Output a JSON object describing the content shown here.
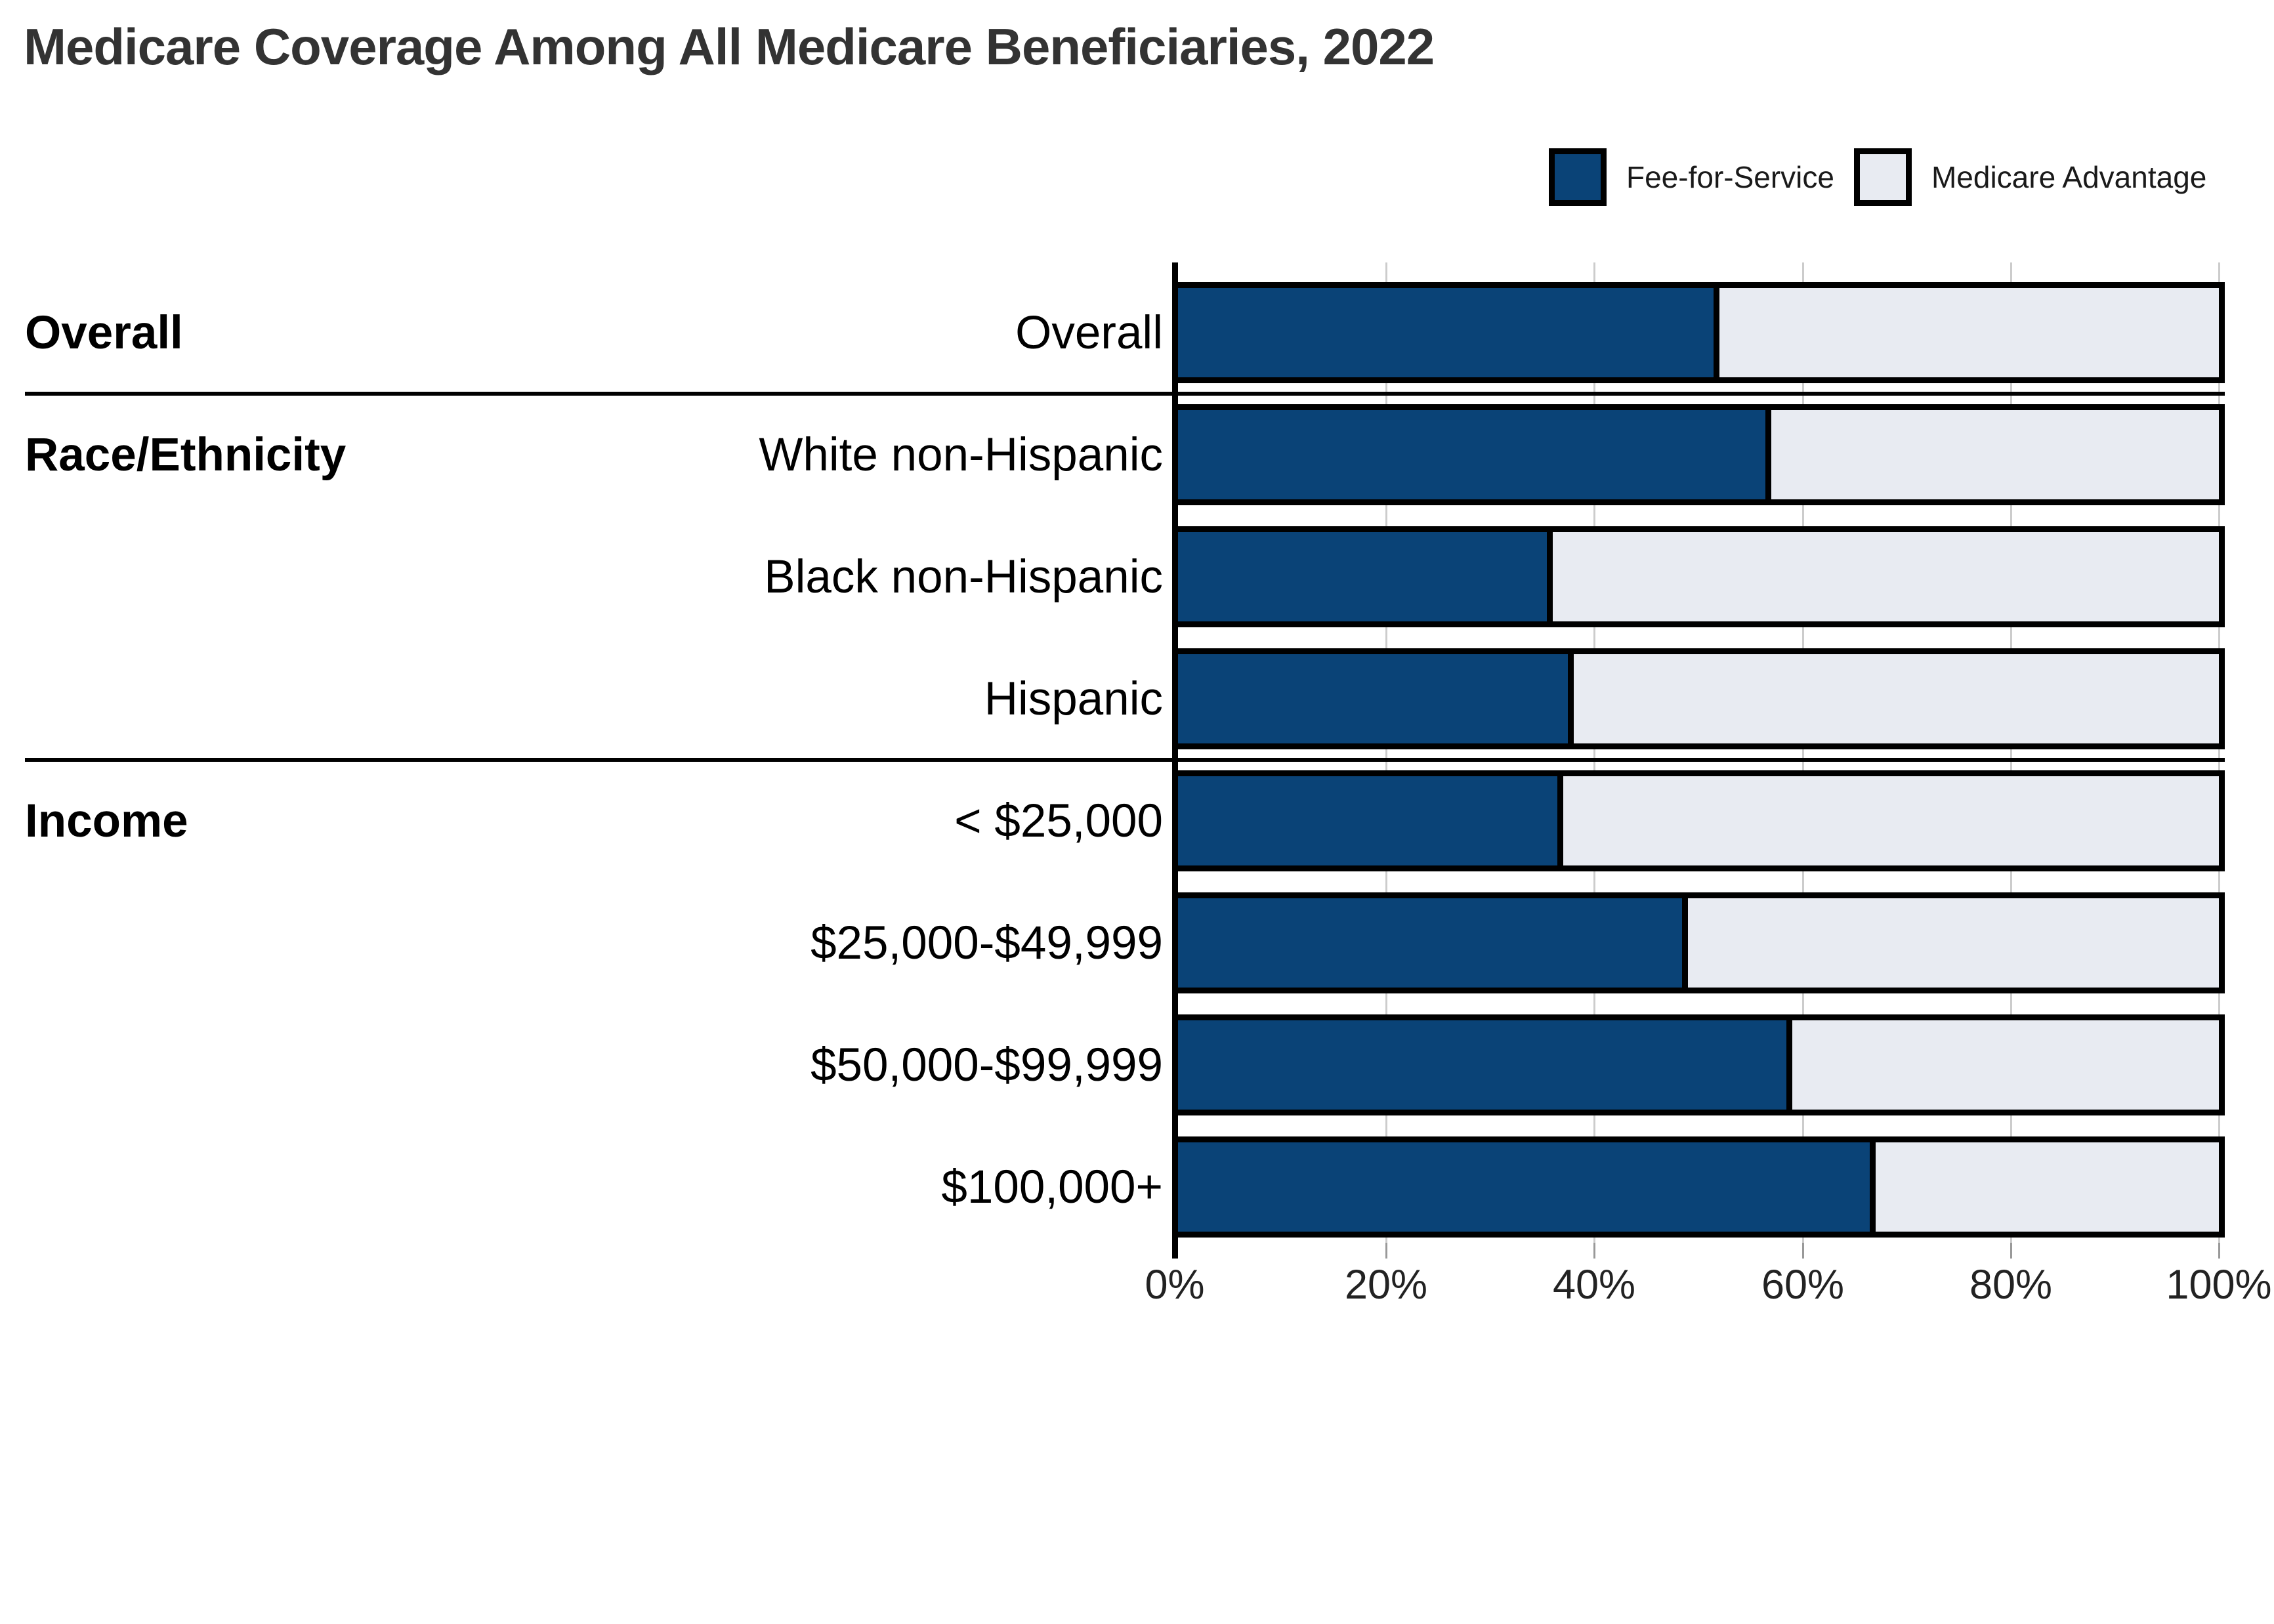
{
  "title": "Medicare Coverage Among All Medicare Beneficiaries, 2022",
  "legend": {
    "items": [
      {
        "label": "Fee-for-Service",
        "color": "#0A4377"
      },
      {
        "label": "Medicare Advantage",
        "color": "#E8EBF2"
      }
    ]
  },
  "sections": [
    {
      "label": "Overall"
    },
    {
      "label": "Race/Ethnicity"
    },
    {
      "label": "Income"
    }
  ],
  "axis": {
    "tick_labels": [
      "0%",
      "20%",
      "40%",
      "60%",
      "80%",
      "100%"
    ]
  },
  "chart_data": {
    "type": "bar",
    "stacked": true,
    "orientation": "horizontal",
    "title": "Medicare Coverage Among All Medicare Beneficiaries, 2022",
    "categories": [
      "Overall",
      "White non-Hispanic",
      "Black non-Hispanic",
      "Hispanic",
      "< $25,000",
      "$25,000-$49,999",
      "$50,000-$99,999",
      "$100,000+"
    ],
    "groups": [
      {
        "label": "Overall",
        "categories": [
          "Overall"
        ]
      },
      {
        "label": "Race/Ethnicity",
        "categories": [
          "White non-Hispanic",
          "Black non-Hispanic",
          "Hispanic"
        ]
      },
      {
        "label": "Income",
        "categories": [
          "< $25,000",
          "$25,000-$49,999",
          "$50,000-$99,999",
          "$100,000+"
        ]
      }
    ],
    "series": [
      {
        "name": "Fee-for-Service",
        "color": "#0A4377",
        "values": [
          52,
          57,
          36,
          38,
          37,
          49,
          59,
          67
        ]
      },
      {
        "name": "Medicare Advantage",
        "color": "#E8EBF2",
        "values": [
          48,
          43,
          64,
          62,
          63,
          51,
          41,
          33
        ]
      }
    ],
    "x_axis": {
      "min": 0,
      "max": 100,
      "unit": "%",
      "tick_labels": [
        "0%",
        "20%",
        "40%",
        "60%",
        "80%",
        "100%"
      ]
    },
    "legend_position": "top-right",
    "grid": true
  },
  "colors": {
    "fee_for_service": "#0A4377",
    "medicare_advantage": "#E8EBF2",
    "bar_border": "#000000",
    "axis_line": "#000000",
    "gridline": "#cccccc",
    "title_text": "#333333",
    "label_text": "#000000"
  }
}
